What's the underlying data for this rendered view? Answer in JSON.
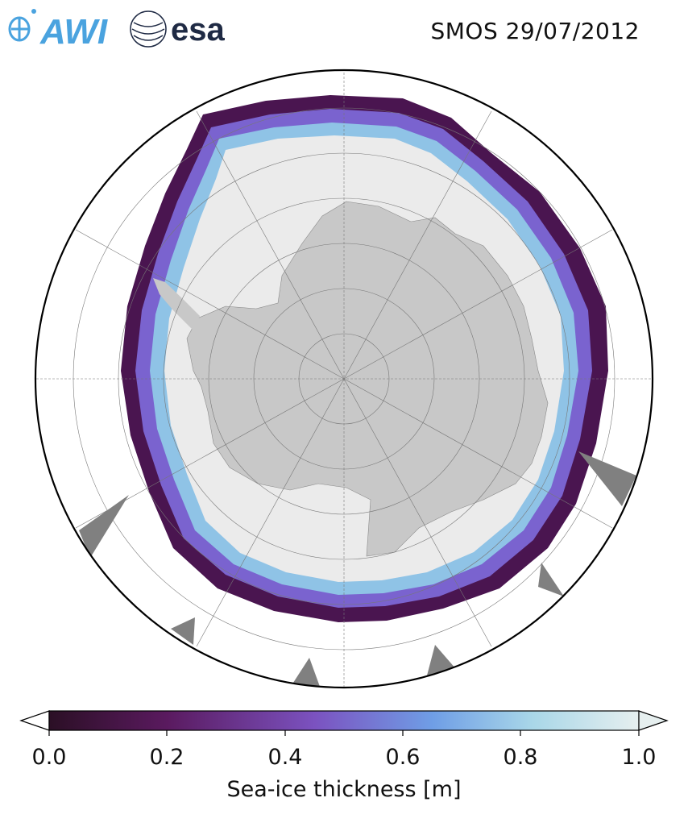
{
  "header": {
    "title": "SMOS 29/07/2012",
    "logo_awi_text": "AWI",
    "logo_esa_text": "esa"
  },
  "map": {
    "projection": "south-polar-stereographic",
    "land_color": "#c8c8c8",
    "thick_ice_color": "#ebebeb",
    "no_data_color": "#808080",
    "ocean_color": "#ffffff"
  },
  "colorbar": {
    "label": "Sea-ice thickness [m]",
    "min": 0.0,
    "max": 1.0,
    "ticks": [
      "0.0",
      "0.2",
      "0.4",
      "0.6",
      "0.8",
      "1.0"
    ],
    "colormap": [
      "#2b0f25",
      "#5a1a5f",
      "#7b52c0",
      "#6f9ee6",
      "#a9d7e8",
      "#e6efef"
    ]
  }
}
